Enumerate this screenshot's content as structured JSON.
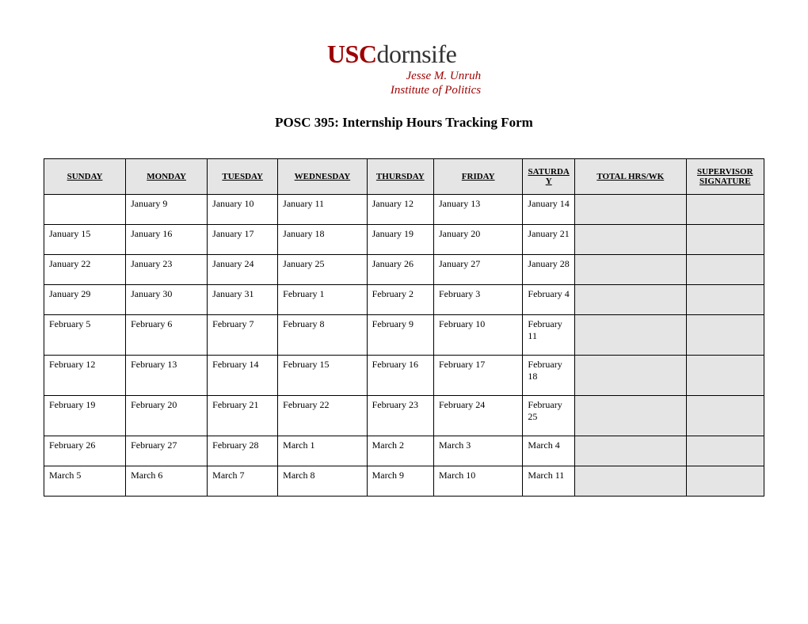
{
  "logo": {
    "usc": "USC",
    "dornsife": "dornsife",
    "sub1": "Jesse M. Unruh",
    "sub2": "Institute of Politics"
  },
  "title": "POSC 395:  Internship Hours Tracking Form",
  "table": {
    "type": "table",
    "background_color": "#ffffff",
    "border_color": "#000000",
    "header_bg_color": "#e5e5e5",
    "shaded_bg_color": "#e5e5e5",
    "font": "Times New Roman",
    "header_fontsize": 11,
    "cell_fontsize": 12,
    "columns": [
      "SUNDAY",
      "MONDAY",
      "TUESDAY",
      "WEDNESDAY",
      "THURSDAY",
      "FRIDAY",
      "SATURDAY",
      "TOTAL HRS/WK",
      "SUPERVISOR SIGNATURE"
    ],
    "rows": [
      [
        "",
        "January 9",
        "January 10",
        "January 11",
        "January 12",
        "January 13",
        "January 14",
        "",
        ""
      ],
      [
        "January 15",
        "January 16",
        "January 17",
        "January 18",
        "January 19",
        "January 20",
        "January 21",
        "",
        ""
      ],
      [
        "January 22",
        "January 23",
        "January 24",
        "January 25",
        "January 26",
        "January 27",
        "January 28",
        "",
        ""
      ],
      [
        "January 29",
        "January 30",
        "January 31",
        "February 1",
        "February 2",
        "February 3",
        "February 4",
        "",
        ""
      ],
      [
        "February 5",
        "February 6",
        "February 7",
        "February 8",
        "February 9",
        "February 10",
        "February 11",
        "",
        ""
      ],
      [
        "February 12",
        "February 13",
        "February 14",
        "February 15",
        "February 16",
        "February 17",
        "February 18",
        "",
        ""
      ],
      [
        "February 19",
        "February 20",
        "February 21",
        "February 22",
        "February 23",
        "February 24",
        "February 25",
        "",
        ""
      ],
      [
        "February 26",
        "February 27",
        "February 28",
        "March 1",
        "March 2",
        "March 3",
        "March 4",
        "",
        ""
      ],
      [
        "March 5",
        "March 6",
        "March 7",
        "March 8",
        "March 9",
        "March 10",
        "March 11",
        "",
        ""
      ]
    ]
  }
}
